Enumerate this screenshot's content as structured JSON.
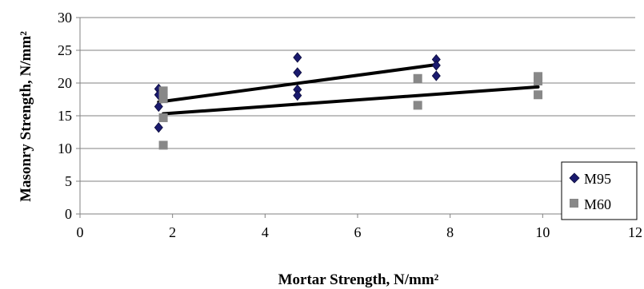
{
  "chart_data": {
    "type": "scatter",
    "title": "",
    "xlabel": "Mortar Strength, N/mm²",
    "ylabel": "Masonry Strength,  N/mm²",
    "xlim": [
      0,
      12
    ],
    "ylim": [
      0,
      30
    ],
    "xticks": [
      0,
      2,
      4,
      6,
      8,
      10,
      12
    ],
    "yticks": [
      0,
      5,
      10,
      15,
      20,
      25,
      30
    ],
    "grid": "horizontal",
    "legend_position": "bottom-right",
    "series": [
      {
        "name": "M95",
        "marker": "diamond",
        "color": "#1a1a6e",
        "points": [
          [
            1.7,
            19.1
          ],
          [
            1.7,
            18.2
          ],
          [
            1.7,
            16.4
          ],
          [
            1.7,
            13.2
          ],
          [
            4.7,
            23.9
          ],
          [
            4.7,
            21.6
          ],
          [
            4.7,
            19.0
          ],
          [
            4.7,
            18.1
          ],
          [
            7.7,
            23.6
          ],
          [
            7.7,
            22.7
          ],
          [
            7.7,
            21.1
          ]
        ],
        "trendline": [
          [
            1.7,
            17.1
          ],
          [
            7.7,
            22.8
          ]
        ]
      },
      {
        "name": "M60",
        "marker": "square",
        "color": "#888888",
        "points": [
          [
            1.8,
            18.8
          ],
          [
            1.8,
            17.6
          ],
          [
            1.8,
            14.7
          ],
          [
            1.8,
            10.5
          ],
          [
            7.3,
            20.7
          ],
          [
            7.3,
            16.6
          ],
          [
            9.9,
            21.0
          ],
          [
            9.9,
            20.3
          ],
          [
            9.9,
            18.2
          ]
        ],
        "trendline": [
          [
            1.8,
            15.3
          ],
          [
            9.9,
            19.4
          ]
        ]
      }
    ]
  }
}
